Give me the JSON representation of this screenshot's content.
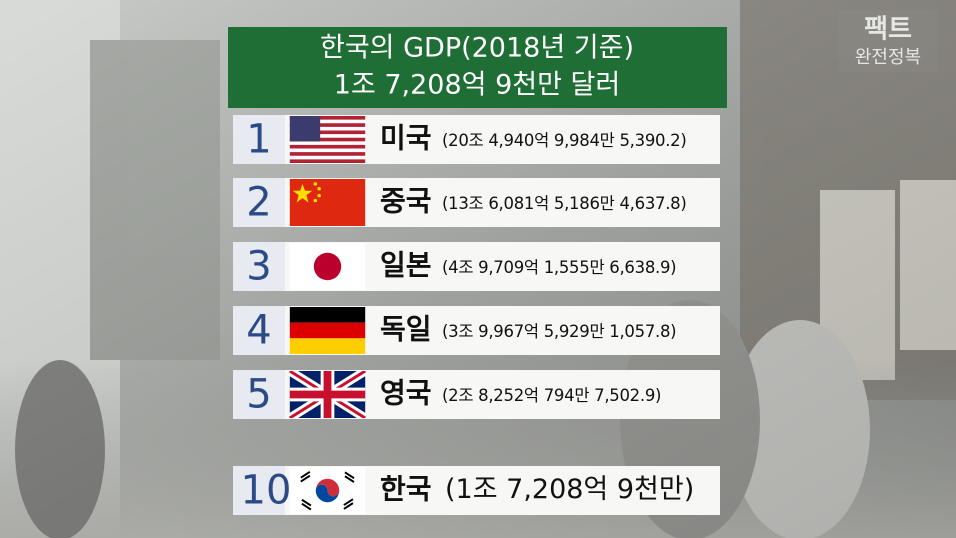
{
  "header": {
    "title_line1": "한국의 GDP(2018년 기준)",
    "title_line2": "1조 7,208억 9천만 달러"
  },
  "watermark": {
    "top": "팩트",
    "bottom": "완전정복"
  },
  "rankings": [
    {
      "rank": 1,
      "country": "미국",
      "gdp": "(20조 4,940억 9,984만 5,390.2)"
    },
    {
      "rank": 2,
      "country": "중국",
      "gdp": "(13조 6,081억 5,186만 4,637.8)"
    },
    {
      "rank": 3,
      "country": "일본",
      "gdp": "(4조 9,709억 1,555만 6,638.9)"
    },
    {
      "rank": 4,
      "country": "독일",
      "gdp": "(3조 9,967억 5,929만 1,057.8)"
    },
    {
      "rank": 5,
      "country": "영국",
      "gdp": "(2조 8,252억 794만 7,502.9)"
    },
    {
      "rank": 10,
      "country": "한국",
      "gdp": "(1조 7,208억 9천만)"
    }
  ]
}
